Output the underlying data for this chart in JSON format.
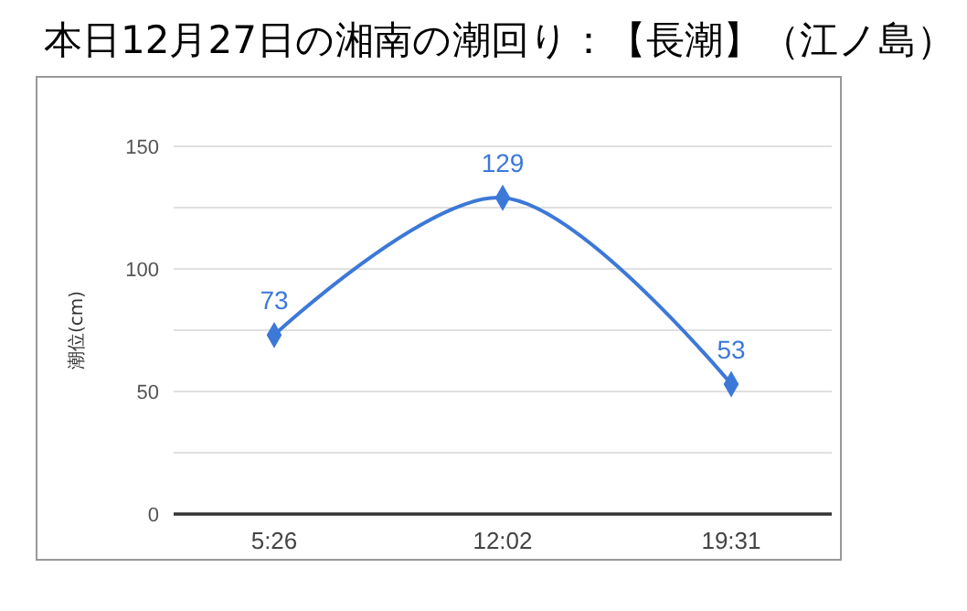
{
  "chart_data": {
    "type": "line",
    "title": "本日12月27日の湘南の潮回り：【長潮】（江ノ島）",
    "ylabel": "潮位(cm)",
    "categories": [
      "5:26",
      "12:02",
      "19:31"
    ],
    "series": [
      {
        "color": "#3c78d8",
        "values": [
          73,
          129,
          53
        ]
      }
    ],
    "ylim": [
      0,
      150
    ],
    "yticks": [
      0,
      {
        "value": 25,
        "label": null
      },
      50,
      {
        "value": 75,
        "label": null
      },
      100,
      {
        "value": 125,
        "label": null
      },
      150
    ],
    "grid": "y",
    "marker": "diamond",
    "data_labels": true
  }
}
